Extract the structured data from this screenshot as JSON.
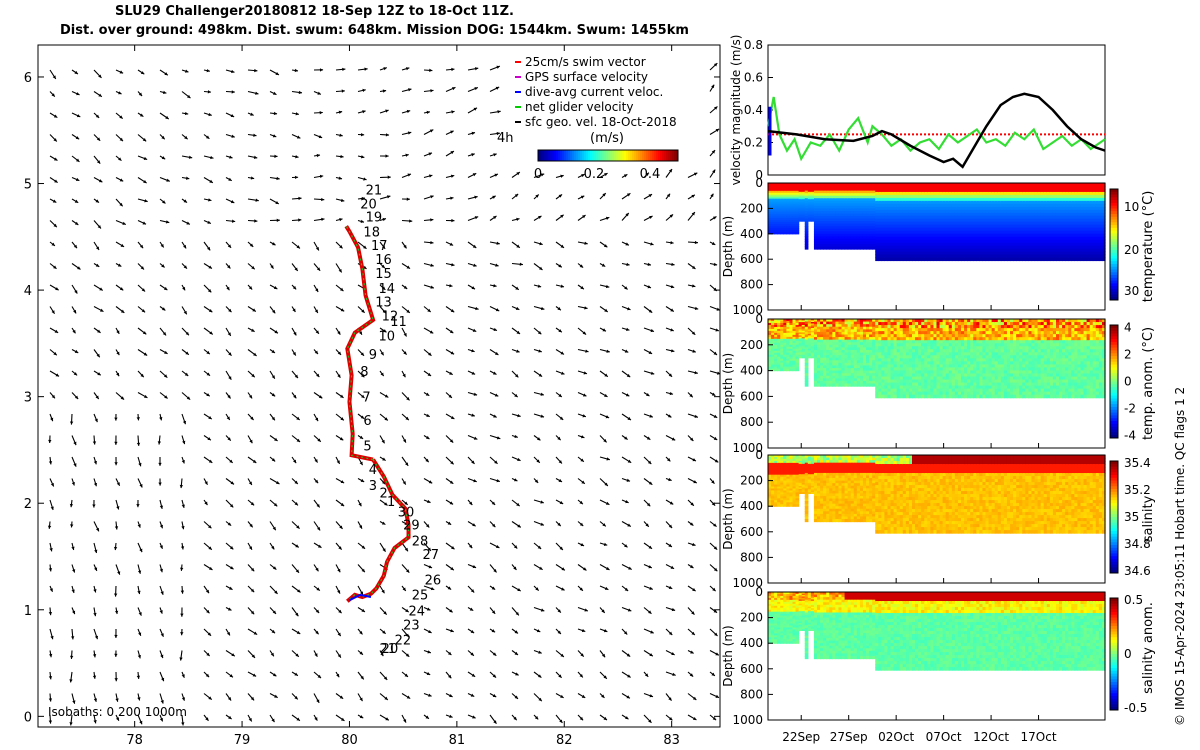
{
  "title": {
    "line1": "SLU29 Challenger20180812 18-Sep 12Z to 18-Oct 11Z.",
    "line2": "Dist. over ground: 498km. Dist. swum: 648km. Mission DOG: 1544km. Swum: 1455km"
  },
  "credit": "© IMOS 15-Apr-2024 23:05:11 Hobart time. QC flags 1  2",
  "chart_data": [
    {
      "type": "scatter",
      "name": "map",
      "x_ticks": [
        "78",
        "79",
        "80",
        "81",
        "82",
        "83"
      ],
      "y_ticks": [
        "0",
        "1",
        "2",
        "3",
        "4",
        "5",
        "6"
      ],
      "xlim": [
        77.1,
        83.45
      ],
      "ylim": [
        -0.1,
        6.3
      ],
      "legend": [
        {
          "label": "25cm/s swim vector",
          "color": "#ff0000"
        },
        {
          "label": "GPS surface velocity",
          "color": "#cc00cc"
        },
        {
          "label": "dive-avg current veloc.",
          "color": "#0000ff"
        },
        {
          "label": "net glider velocity",
          "color": "#00cc00"
        },
        {
          "label": "sfc geo. vel. 18-Oct-2018",
          "color": "#000000"
        }
      ],
      "colorbar": {
        "label": "(m/s)",
        "ticks": [
          "0",
          "0.2",
          "0.4"
        ],
        "range": [
          0,
          0.5
        ]
      },
      "label_4h": "4h",
      "isobaths": "Isobaths: 0   200  1000m",
      "track": [
        [
          80.22,
          2.41
        ],
        [
          80.02,
          2.45
        ],
        [
          80.03,
          2.65
        ],
        [
          80.0,
          2.95
        ],
        [
          80.02,
          3.2
        ],
        [
          79.98,
          3.45
        ],
        [
          80.05,
          3.6
        ],
        [
          80.22,
          3.72
        ],
        [
          80.15,
          3.95
        ],
        [
          80.12,
          4.2
        ],
        [
          80.08,
          4.4
        ],
        [
          80.0,
          4.55
        ],
        [
          79.97,
          4.6
        ]
      ],
      "track_south": [
        [
          80.22,
          2.41
        ],
        [
          80.32,
          2.25
        ],
        [
          80.4,
          2.08
        ],
        [
          80.52,
          1.95
        ],
        [
          80.55,
          1.8
        ],
        [
          80.55,
          1.68
        ],
        [
          80.42,
          1.58
        ],
        [
          80.35,
          1.45
        ],
        [
          80.32,
          1.32
        ],
        [
          80.25,
          1.2
        ],
        [
          80.2,
          1.15
        ],
        [
          80.12,
          1.12
        ],
        [
          80.05,
          1.14
        ],
        [
          79.98,
          1.08
        ]
      ],
      "day_labels": [
        {
          "t": "21",
          "x": 80.15,
          "y": 4.82
        },
        {
          "t": "20",
          "x": 80.1,
          "y": 4.69
        },
        {
          "t": "19",
          "x": 80.15,
          "y": 4.57
        },
        {
          "t": "18",
          "x": 80.13,
          "y": 4.43
        },
        {
          "t": "17",
          "x": 80.2,
          "y": 4.3
        },
        {
          "t": "16",
          "x": 80.24,
          "y": 4.17
        },
        {
          "t": "15",
          "x": 80.24,
          "y": 4.04
        },
        {
          "t": "14",
          "x": 80.27,
          "y": 3.9
        },
        {
          "t": "13",
          "x": 80.24,
          "y": 3.77
        },
        {
          "t": "12",
          "x": 80.3,
          "y": 3.64
        },
        {
          "t": "11",
          "x": 80.38,
          "y": 3.59
        },
        {
          "t": "10",
          "x": 80.27,
          "y": 3.45
        },
        {
          "t": "9",
          "x": 80.18,
          "y": 3.28
        },
        {
          "t": "8",
          "x": 80.1,
          "y": 3.12
        },
        {
          "t": "7",
          "x": 80.12,
          "y": 2.88
        },
        {
          "t": "6",
          "x": 80.13,
          "y": 2.66
        },
        {
          "t": "5",
          "x": 80.13,
          "y": 2.42
        },
        {
          "t": "4",
          "x": 80.18,
          "y": 2.2
        },
        {
          "t": "3",
          "x": 80.18,
          "y": 2.05
        },
        {
          "t": "2",
          "x": 80.28,
          "y": 1.98
        },
        {
          "t": "1",
          "x": 80.35,
          "y": 1.9
        },
        {
          "t": "30",
          "x": 80.45,
          "y": 1.8
        },
        {
          "t": "29",
          "x": 80.5,
          "y": 1.68
        },
        {
          "t": "28",
          "x": 80.58,
          "y": 1.53
        },
        {
          "t": "27",
          "x": 80.68,
          "y": 1.4
        },
        {
          "t": "26",
          "x": 80.7,
          "y": 1.16
        },
        {
          "t": "25",
          "x": 80.58,
          "y": 1.02
        },
        {
          "t": "24",
          "x": 80.55,
          "y": 0.87
        },
        {
          "t": "23",
          "x": 80.5,
          "y": 0.74
        },
        {
          "t": "22",
          "x": 80.42,
          "y": 0.6
        },
        {
          "t": "21",
          "x": 80.28,
          "y": 0.52
        },
        {
          "t": "20",
          "x": 80.3,
          "y": 0.52
        }
      ]
    },
    {
      "type": "line",
      "name": "velocity",
      "ylabel": "velocity magnitude (m/s)",
      "y_ticks": [
        "0",
        "0.2",
        "0.4",
        "0.6",
        "0.8"
      ],
      "ylim": [
        0,
        0.8
      ],
      "swim_reference": 0.25,
      "black_series": [
        [
          0,
          0.27
        ],
        [
          3,
          0.25
        ],
        [
          6,
          0.22
        ],
        [
          9,
          0.21
        ],
        [
          11,
          0.24
        ],
        [
          12,
          0.27
        ],
        [
          13,
          0.25
        ],
        [
          15,
          0.18
        ],
        [
          17,
          0.12
        ],
        [
          18.5,
          0.08
        ],
        [
          19.5,
          0.1
        ],
        [
          20.5,
          0.05
        ],
        [
          21.5,
          0.15
        ],
        [
          23,
          0.3
        ],
        [
          24.5,
          0.43
        ],
        [
          25.8,
          0.48
        ],
        [
          27,
          0.5
        ],
        [
          28.5,
          0.48
        ],
        [
          30,
          0.4
        ],
        [
          31.5,
          0.3
        ],
        [
          33,
          0.22
        ],
        [
          34.5,
          0.17
        ],
        [
          35.5,
          0.15
        ]
      ],
      "green_series": [
        [
          0,
          0.3
        ],
        [
          0.6,
          0.48
        ],
        [
          1.2,
          0.25
        ],
        [
          2,
          0.15
        ],
        [
          2.8,
          0.22
        ],
        [
          3.5,
          0.1
        ],
        [
          4.5,
          0.2
        ],
        [
          5.5,
          0.18
        ],
        [
          6.5,
          0.25
        ],
        [
          7.5,
          0.15
        ],
        [
          8.5,
          0.28
        ],
        [
          9.5,
          0.35
        ],
        [
          10.5,
          0.2
        ],
        [
          11,
          0.3
        ],
        [
          12,
          0.25
        ],
        [
          13,
          0.18
        ],
        [
          14,
          0.22
        ],
        [
          15,
          0.15
        ],
        [
          16,
          0.2
        ],
        [
          17,
          0.22
        ],
        [
          18,
          0.16
        ],
        [
          19,
          0.25
        ],
        [
          20,
          0.2
        ],
        [
          21,
          0.24
        ],
        [
          22,
          0.28
        ],
        [
          23,
          0.2
        ],
        [
          24,
          0.22
        ],
        [
          25,
          0.18
        ],
        [
          26,
          0.26
        ],
        [
          27,
          0.22
        ],
        [
          28,
          0.28
        ],
        [
          29,
          0.16
        ],
        [
          30,
          0.2
        ],
        [
          31,
          0.24
        ],
        [
          32,
          0.18
        ],
        [
          33,
          0.22
        ],
        [
          34,
          0.16
        ],
        [
          35,
          0.2
        ],
        [
          35.5,
          0.22
        ]
      ]
    },
    {
      "type": "heatmap",
      "name": "temperature",
      "ylabel": "Depth (m)",
      "cbar_label": "temperature (°C)",
      "cbar_ticks": [
        "10",
        "20",
        "30"
      ],
      "y_ticks": [
        "0",
        "200",
        "400",
        "600",
        "800",
        "1000"
      ]
    },
    {
      "type": "heatmap",
      "name": "temp_anom",
      "ylabel": "Depth (m)",
      "cbar_label": "temp. anom. (°C)",
      "cbar_ticks": [
        "4",
        "2",
        "0",
        "-2",
        "-4"
      ],
      "y_ticks": [
        "0",
        "200",
        "400",
        "600",
        "800",
        "1000"
      ]
    },
    {
      "type": "heatmap",
      "name": "salinity",
      "ylabel": "Depth (m)",
      "cbar_label": "salinity",
      "cbar_ticks": [
        "35.4",
        "35.2",
        "35",
        "34.8",
        "34.6"
      ],
      "y_ticks": [
        "0",
        "200",
        "400",
        "600",
        "800",
        "1000"
      ]
    },
    {
      "type": "heatmap",
      "name": "sal_anom",
      "ylabel": "Depth (m)",
      "cbar_label": "salinity anom.",
      "cbar_ticks": [
        "0.5",
        "0",
        "-0.5"
      ],
      "y_ticks": [
        "0",
        "200",
        "400",
        "600",
        "800",
        "1000"
      ],
      "x_ticks": [
        "22Sep",
        "27Sep",
        "02Oct",
        "07Oct",
        "12Oct",
        "17Oct"
      ]
    }
  ]
}
